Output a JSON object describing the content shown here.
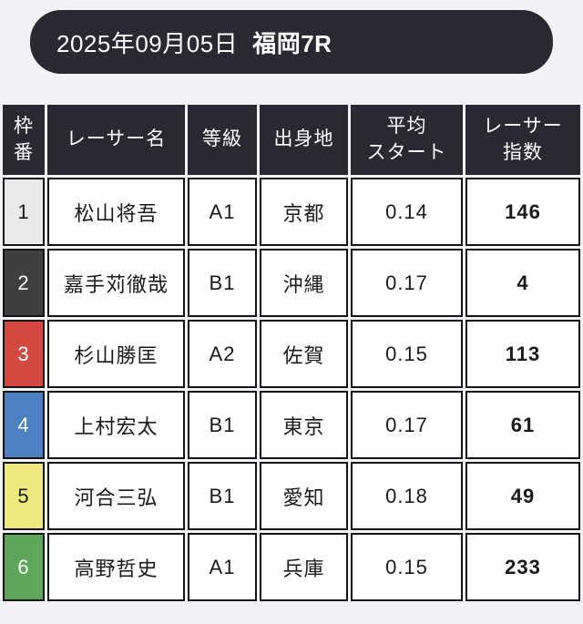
{
  "header": {
    "date": "2025年09月05日",
    "race": "福岡7R",
    "bg": "#2a2933"
  },
  "colors": {
    "page_background": "#f3f3f7",
    "header_cell": "#2a2933",
    "cell_border": "#141414"
  },
  "table": {
    "columns": [
      {
        "key": "waku",
        "label": "枠\n番"
      },
      {
        "key": "name",
        "label": "レーサー名"
      },
      {
        "key": "grade",
        "label": "等級"
      },
      {
        "key": "origin",
        "label": "出身地"
      },
      {
        "key": "avg_start",
        "label": "平均\nスタート"
      },
      {
        "key": "index",
        "label": "レーサー\n指数"
      }
    ],
    "rows": [
      {
        "waku": "1",
        "name": "松山将吾",
        "grade": "A1",
        "origin": "京都",
        "avg_start": "0.14",
        "index": "146",
        "waku_bg": "#e9e9e9",
        "waku_color": "#1a1a1a"
      },
      {
        "waku": "2",
        "name": "嘉手苅徹哉",
        "grade": "B1",
        "origin": "沖縄",
        "avg_start": "0.17",
        "index": "4",
        "waku_bg": "#3f3f3f",
        "waku_color": "#ffffff"
      },
      {
        "waku": "3",
        "name": "杉山勝匡",
        "grade": "A2",
        "origin": "佐賀",
        "avg_start": "0.15",
        "index": "113",
        "waku_bg": "#d4493f",
        "waku_color": "#ffffff"
      },
      {
        "waku": "4",
        "name": "上村宏太",
        "grade": "B1",
        "origin": "東京",
        "avg_start": "0.17",
        "index": "61",
        "waku_bg": "#4d80c0",
        "waku_color": "#ffffff"
      },
      {
        "waku": "5",
        "name": "河合三弘",
        "grade": "B1",
        "origin": "愛知",
        "avg_start": "0.18",
        "index": "49",
        "waku_bg": "#eee97e",
        "waku_color": "#1a1a1a"
      },
      {
        "waku": "6",
        "name": "高野哲史",
        "grade": "A1",
        "origin": "兵庫",
        "avg_start": "0.15",
        "index": "233",
        "waku_bg": "#5da65c",
        "waku_color": "#ffffff"
      }
    ]
  }
}
